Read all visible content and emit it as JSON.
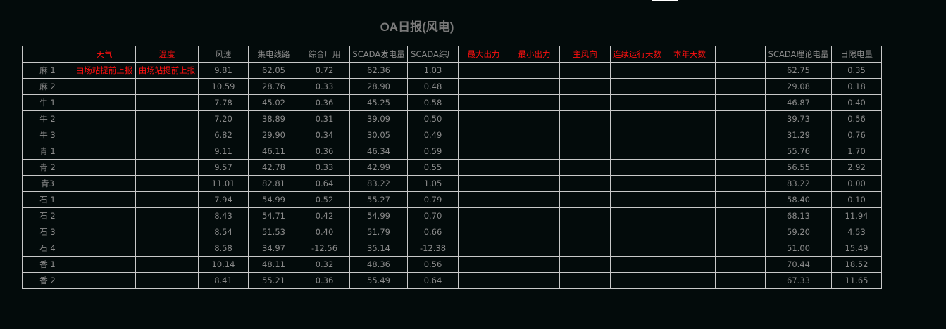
{
  "title": "OA日报(风电)",
  "columns": [
    {
      "label": "",
      "red": false
    },
    {
      "label": "天气",
      "red": true
    },
    {
      "label": "温度",
      "red": true
    },
    {
      "label": "风速",
      "red": false
    },
    {
      "label": "集电线路",
      "red": false
    },
    {
      "label": "综合厂用",
      "red": false
    },
    {
      "label": "SCADA发电量",
      "red": false
    },
    {
      "label": "SCADA综厂",
      "red": false
    },
    {
      "label": "最大出力",
      "red": true
    },
    {
      "label": "最小出力",
      "red": true
    },
    {
      "label": "主风向",
      "red": true
    },
    {
      "label": "连续运行天数",
      "red": true
    },
    {
      "label": "本年天数",
      "red": true
    },
    {
      "label": "",
      "red": false
    },
    {
      "label": "SCADA理论电量",
      "red": false
    },
    {
      "label": "日限电量",
      "red": false
    }
  ],
  "rows": [
    [
      "麻 1",
      "由场站提前上报",
      "由场站提前上报",
      "9.81",
      "62.05",
      "0.72",
      "62.36",
      "1.03",
      "",
      "",
      "",
      "",
      "",
      "",
      "62.75",
      "0.35"
    ],
    [
      "麻 2",
      "",
      "",
      "10.59",
      "28.76",
      "0.33",
      "28.90",
      "0.48",
      "",
      "",
      "",
      "",
      "",
      "",
      "29.08",
      "0.18"
    ],
    [
      "牛 1",
      "",
      "",
      "7.78",
      "45.02",
      "0.36",
      "45.25",
      "0.58",
      "",
      "",
      "",
      "",
      "",
      "",
      "46.87",
      "0.40"
    ],
    [
      "牛 2",
      "",
      "",
      "7.20",
      "38.89",
      "0.31",
      "39.09",
      "0.50",
      "",
      "",
      "",
      "",
      "",
      "",
      "39.73",
      "0.56"
    ],
    [
      "牛 3",
      "",
      "",
      "6.82",
      "29.90",
      "0.34",
      "30.05",
      "0.49",
      "",
      "",
      "",
      "",
      "",
      "",
      "31.29",
      "0.76"
    ],
    [
      "青 1",
      "",
      "",
      "9.11",
      "46.11",
      "0.36",
      "46.34",
      "0.59",
      "",
      "",
      "",
      "",
      "",
      "",
      "55.76",
      "1.70"
    ],
    [
      "青 2",
      "",
      "",
      "9.57",
      "42.78",
      "0.33",
      "42.99",
      "0.55",
      "",
      "",
      "",
      "",
      "",
      "",
      "56.55",
      "2.92"
    ],
    [
      "青3",
      "",
      "",
      "11.01",
      "82.81",
      "0.64",
      "83.22",
      "1.05",
      "",
      "",
      "",
      "",
      "",
      "",
      "83.22",
      "0.00"
    ],
    [
      "石 1",
      "",
      "",
      "7.94",
      "54.99",
      "0.52",
      "55.27",
      "0.79",
      "",
      "",
      "",
      "",
      "",
      "",
      "58.40",
      "0.10"
    ],
    [
      "石 2",
      "",
      "",
      "8.43",
      "54.71",
      "0.42",
      "54.99",
      "0.70",
      "",
      "",
      "",
      "",
      "",
      "",
      "68.13",
      "11.94"
    ],
    [
      "石 3",
      "",
      "",
      "8.54",
      "51.53",
      "0.40",
      "51.79",
      "0.66",
      "",
      "",
      "",
      "",
      "",
      "",
      "59.20",
      "4.53"
    ],
    [
      "石 4",
      "",
      "",
      "8.58",
      "34.97",
      "-12.56",
      "35.14",
      "-12.38",
      "",
      "",
      "",
      "",
      "",
      "",
      "51.00",
      "15.49"
    ],
    [
      "香 1",
      "",
      "",
      "10.14",
      "48.11",
      "0.32",
      "48.36",
      "0.56",
      "",
      "",
      "",
      "",
      "",
      "",
      "70.44",
      "18.52"
    ],
    [
      "香 2",
      "",
      "",
      "8.41",
      "55.21",
      "0.36",
      "55.49",
      "0.64",
      "",
      "",
      "",
      "",
      "",
      "",
      "67.33",
      "11.65"
    ]
  ],
  "colors": {
    "background": "#030b0b",
    "text": "#8a8a8a",
    "highlight": "#ff1010",
    "grid": "#c8c8c8"
  }
}
